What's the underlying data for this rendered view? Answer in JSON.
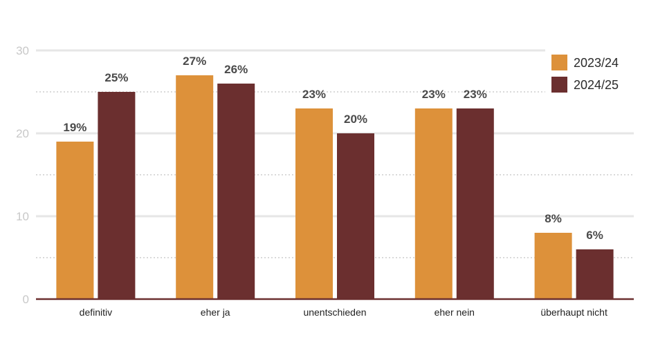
{
  "chart_data": {
    "type": "bar",
    "categories": [
      "definitiv",
      "eher ja",
      "unentschieden",
      "eher nein",
      "überhaupt nicht"
    ],
    "series": [
      {
        "name": "2023/24",
        "color": "#dd913a",
        "values": [
          19,
          27,
          23,
          23,
          8
        ],
        "labels": [
          "19%",
          "27%",
          "23%",
          "23%",
          "8%"
        ]
      },
      {
        "name": "2024/25",
        "color": "#6b2f2f",
        "values": [
          25,
          26,
          20,
          23,
          6
        ],
        "labels": [
          "25%",
          "26%",
          "20%",
          "23%",
          "6%"
        ]
      }
    ],
    "y_ticks": [
      0,
      10,
      20,
      30
    ],
    "y_tick_labels": [
      "0",
      "10",
      "20",
      "30"
    ],
    "ylim": [
      0,
      30
    ],
    "grid": true,
    "legend_position": "top-right",
    "title": "",
    "xlabel": "",
    "ylabel": "",
    "colors": {
      "grid_major": "#e6e6e6",
      "grid_minor": "#d9d9d9",
      "axis": "#6b2f2f"
    }
  }
}
